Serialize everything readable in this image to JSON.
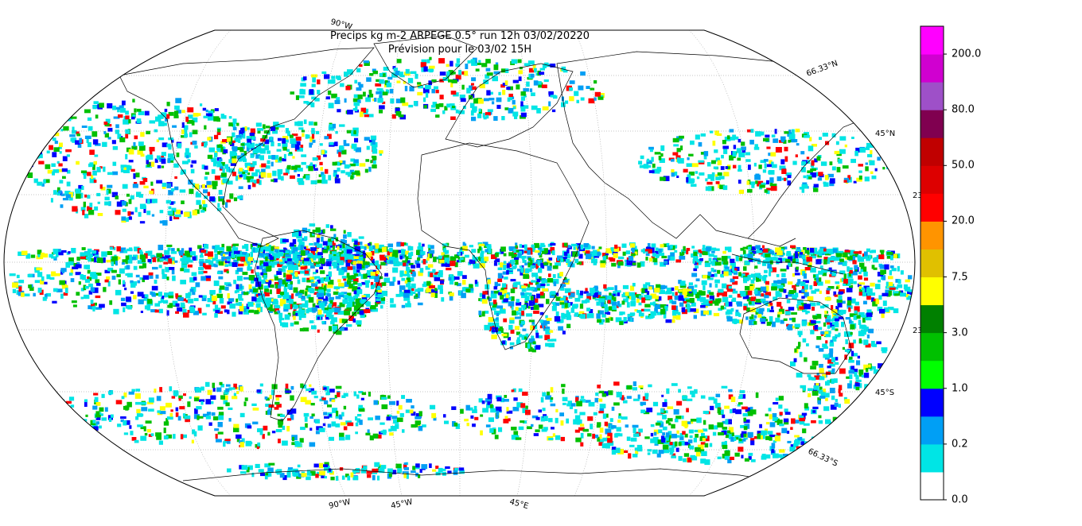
{
  "title": {
    "line1": "Precips kg m-2 ARPEGE 0.5° run 12h 03/02/20220",
    "line2": "Prévision pour le 03/02 15H"
  },
  "graticule_labels": {
    "lon_top": "90°W",
    "lon_bottom": [
      "90°W",
      "45°W",
      "45°E"
    ],
    "lat_right": [
      "66.33°N",
      "45°N",
      "23",
      "23",
      "45°S",
      "66.33°S"
    ]
  },
  "colorbar": {
    "colors": [
      "#ffffff",
      "#00e5e5",
      "#009ff5",
      "#0000ff",
      "#00ff00",
      "#00c000",
      "#008000",
      "#ffff00",
      "#e0c000",
      "#ff9400",
      "#ff0000",
      "#dd0000",
      "#c00000",
      "#800050",
      "#9e50c8",
      "#d000d0",
      "#ff00ff"
    ],
    "tick_labels": [
      "0.0",
      "0.2",
      "1.0",
      "3.0",
      "7.5",
      "20.0",
      "50.0",
      "80.0",
      "200.0"
    ]
  },
  "colors": {
    "land_lines": "#000000",
    "precip_light": "#00e5e5",
    "precip_med": "#009ff5",
    "precip_blue": "#0000ff",
    "precip_green": "#00c000",
    "precip_yellow": "#ffff00",
    "precip_red": "#ff0000"
  }
}
